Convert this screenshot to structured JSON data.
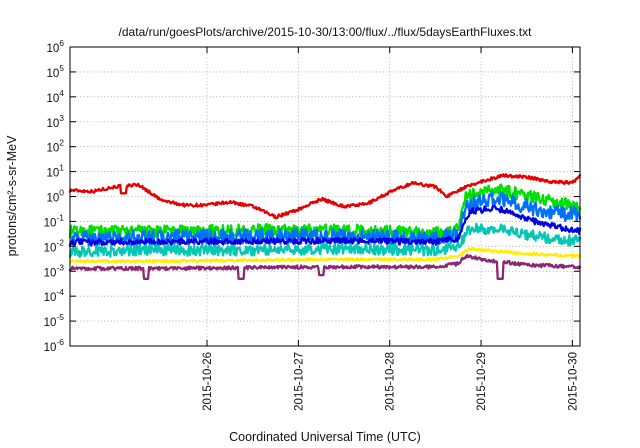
{
  "chart_data": {
    "type": "line",
    "title": "/data/run/goesPlots/archive/2015-10-30/13:00/flux/../flux/5daysEarthFluxes.txt",
    "xlabel": "Coordinated Universal Time (UTC)",
    "ylabel": "protons/cm²-s-sr-MeV",
    "y_scale": "log",
    "ylim_exponent": [
      -6,
      6
    ],
    "y_tick_labels": [
      {
        "base": "10",
        "exp": "-6"
      },
      {
        "base": "10",
        "exp": "-5"
      },
      {
        "base": "10",
        "exp": "-4"
      },
      {
        "base": "10",
        "exp": "-3"
      },
      {
        "base": "10",
        "exp": "-2"
      },
      {
        "base": "10",
        "exp": "-1"
      },
      {
        "base": "10",
        "exp": "0"
      },
      {
        "base": "10",
        "exp": "1"
      },
      {
        "base": "10",
        "exp": "2"
      },
      {
        "base": "10",
        "exp": "3"
      },
      {
        "base": "10",
        "exp": "4"
      },
      {
        "base": "10",
        "exp": "5"
      },
      {
        "base": "10",
        "exp": "6"
      }
    ],
    "x_range": [
      "2015-10-25T00:00",
      "2015-10-30T14:00"
    ],
    "x_tick_labels": [
      "2015-10-26",
      "2015-10-27",
      "2015-10-28",
      "2015-10-29",
      "2015-10-30"
    ],
    "grid": true,
    "series": [
      {
        "color": "#e60000",
        "noise": 0.06,
        "spikes": [
          [
            "2015-10-25T14:00",
            1.35
          ]
        ],
        "points": [
          [
            "2015-10-25T00:00",
            1.8
          ],
          [
            "2015-10-25T06:00",
            1.6
          ],
          [
            "2015-10-25T12:00",
            2.5
          ],
          [
            "2015-10-25T18:00",
            3.0
          ],
          [
            "2015-10-26T00:00",
            0.7
          ],
          [
            "2015-10-26T06:00",
            0.45
          ],
          [
            "2015-10-26T12:00",
            0.45
          ],
          [
            "2015-10-26T18:00",
            0.6
          ],
          [
            "2015-10-27T00:00",
            0.4
          ],
          [
            "2015-10-27T06:00",
            0.15
          ],
          [
            "2015-10-27T12:00",
            0.3
          ],
          [
            "2015-10-27T18:00",
            0.8
          ],
          [
            "2015-10-28T00:00",
            0.4
          ],
          [
            "2015-10-28T06:00",
            0.5
          ],
          [
            "2015-10-28T12:00",
            1.5
          ],
          [
            "2015-10-28T18:00",
            3.5
          ],
          [
            "2015-10-29T00:00",
            2.5
          ],
          [
            "2015-10-29T03:00",
            1.0
          ],
          [
            "2015-10-29T06:00",
            1.8
          ],
          [
            "2015-10-29T12:00",
            4.0
          ],
          [
            "2015-10-29T18:00",
            7.0
          ],
          [
            "2015-10-30T00:00",
            6.0
          ],
          [
            "2015-10-30T06:00",
            4.0
          ],
          [
            "2015-10-30T12:00",
            3.5
          ],
          [
            "2015-10-30T14:00",
            7.0
          ]
        ]
      },
      {
        "color": "#00e000",
        "noise": 0.24,
        "spikes": [],
        "points": [
          [
            "2015-10-25T00:00",
            0.04
          ],
          [
            "2015-10-26T00:00",
            0.04
          ],
          [
            "2015-10-27T00:00",
            0.045
          ],
          [
            "2015-10-28T00:00",
            0.045
          ],
          [
            "2015-10-29T00:00",
            0.035
          ],
          [
            "2015-10-29T06:00",
            0.05
          ],
          [
            "2015-10-29T08:00",
            1.0
          ],
          [
            "2015-10-29T16:00",
            2.0
          ],
          [
            "2015-10-30T00:00",
            1.1
          ],
          [
            "2015-10-30T08:00",
            0.6
          ],
          [
            "2015-10-30T14:00",
            0.4
          ]
        ]
      },
      {
        "color": "#0070ff",
        "noise": 0.3,
        "spikes": [],
        "points": [
          [
            "2015-10-25T00:00",
            0.02
          ],
          [
            "2015-10-26T00:00",
            0.022
          ],
          [
            "2015-10-27T00:00",
            0.025
          ],
          [
            "2015-10-28T00:00",
            0.025
          ],
          [
            "2015-10-29T00:00",
            0.02
          ],
          [
            "2015-10-29T06:00",
            0.03
          ],
          [
            "2015-10-29T08:00",
            0.4
          ],
          [
            "2015-10-29T16:00",
            0.9
          ],
          [
            "2015-10-30T00:00",
            0.4
          ],
          [
            "2015-10-30T08:00",
            0.2
          ],
          [
            "2015-10-30T14:00",
            0.2
          ]
        ]
      },
      {
        "color": "#0000e0",
        "noise": 0.12,
        "spikes": [],
        "points": [
          [
            "2015-10-25T00:00",
            0.015
          ],
          [
            "2015-10-26T00:00",
            0.015
          ],
          [
            "2015-10-27T00:00",
            0.016
          ],
          [
            "2015-10-28T00:00",
            0.017
          ],
          [
            "2015-10-29T00:00",
            0.015
          ],
          [
            "2015-10-29T06:00",
            0.02
          ],
          [
            "2015-10-29T09:00",
            0.25
          ],
          [
            "2015-10-29T16:00",
            0.35
          ],
          [
            "2015-10-30T00:00",
            0.12
          ],
          [
            "2015-10-30T08:00",
            0.06
          ],
          [
            "2015-10-30T14:00",
            0.04
          ]
        ]
      },
      {
        "color": "#00c8b4",
        "noise": 0.22,
        "spikes": [],
        "points": [
          [
            "2015-10-25T00:00",
            0.006
          ],
          [
            "2015-10-26T00:00",
            0.007
          ],
          [
            "2015-10-27T00:00",
            0.007
          ],
          [
            "2015-10-28T00:00",
            0.008
          ],
          [
            "2015-10-29T00:00",
            0.007
          ],
          [
            "2015-10-29T06:00",
            0.01
          ],
          [
            "2015-10-29T09:00",
            0.05
          ],
          [
            "2015-10-29T16:00",
            0.05
          ],
          [
            "2015-10-30T00:00",
            0.03
          ],
          [
            "2015-10-30T08:00",
            0.02
          ],
          [
            "2015-10-30T14:00",
            0.016
          ]
        ]
      },
      {
        "color": "#ffee00",
        "noise": 0.05,
        "spikes": [],
        "points": [
          [
            "2015-10-25T00:00",
            0.0025
          ],
          [
            "2015-10-26T00:00",
            0.0025
          ],
          [
            "2015-10-27T00:00",
            0.0028
          ],
          [
            "2015-10-28T00:00",
            0.003
          ],
          [
            "2015-10-29T00:00",
            0.003
          ],
          [
            "2015-10-29T06:00",
            0.004
          ],
          [
            "2015-10-29T09:00",
            0.008
          ],
          [
            "2015-10-29T18:00",
            0.006
          ],
          [
            "2015-10-30T00:00",
            0.005
          ],
          [
            "2015-10-30T14:00",
            0.004
          ]
        ]
      },
      {
        "color": "#8b2870",
        "noise": 0.07,
        "spikes": [
          [
            "2015-10-25T20:00",
            0.0005
          ],
          [
            "2015-10-26T21:00",
            0.0005
          ],
          [
            "2015-10-27T18:00",
            0.0007
          ],
          [
            "2015-10-29T17:00",
            0.0005
          ]
        ],
        "points": [
          [
            "2015-10-25T00:00",
            0.0013
          ],
          [
            "2015-10-26T00:00",
            0.0013
          ],
          [
            "2015-10-27T00:00",
            0.0014
          ],
          [
            "2015-10-28T00:00",
            0.0015
          ],
          [
            "2015-10-29T00:00",
            0.0015
          ],
          [
            "2015-10-29T06:00",
            0.002
          ],
          [
            "2015-10-29T08:00",
            0.004
          ],
          [
            "2015-10-29T16:00",
            0.0025
          ],
          [
            "2015-10-30T00:00",
            0.0018
          ],
          [
            "2015-10-30T14:00",
            0.0015
          ]
        ]
      }
    ]
  }
}
